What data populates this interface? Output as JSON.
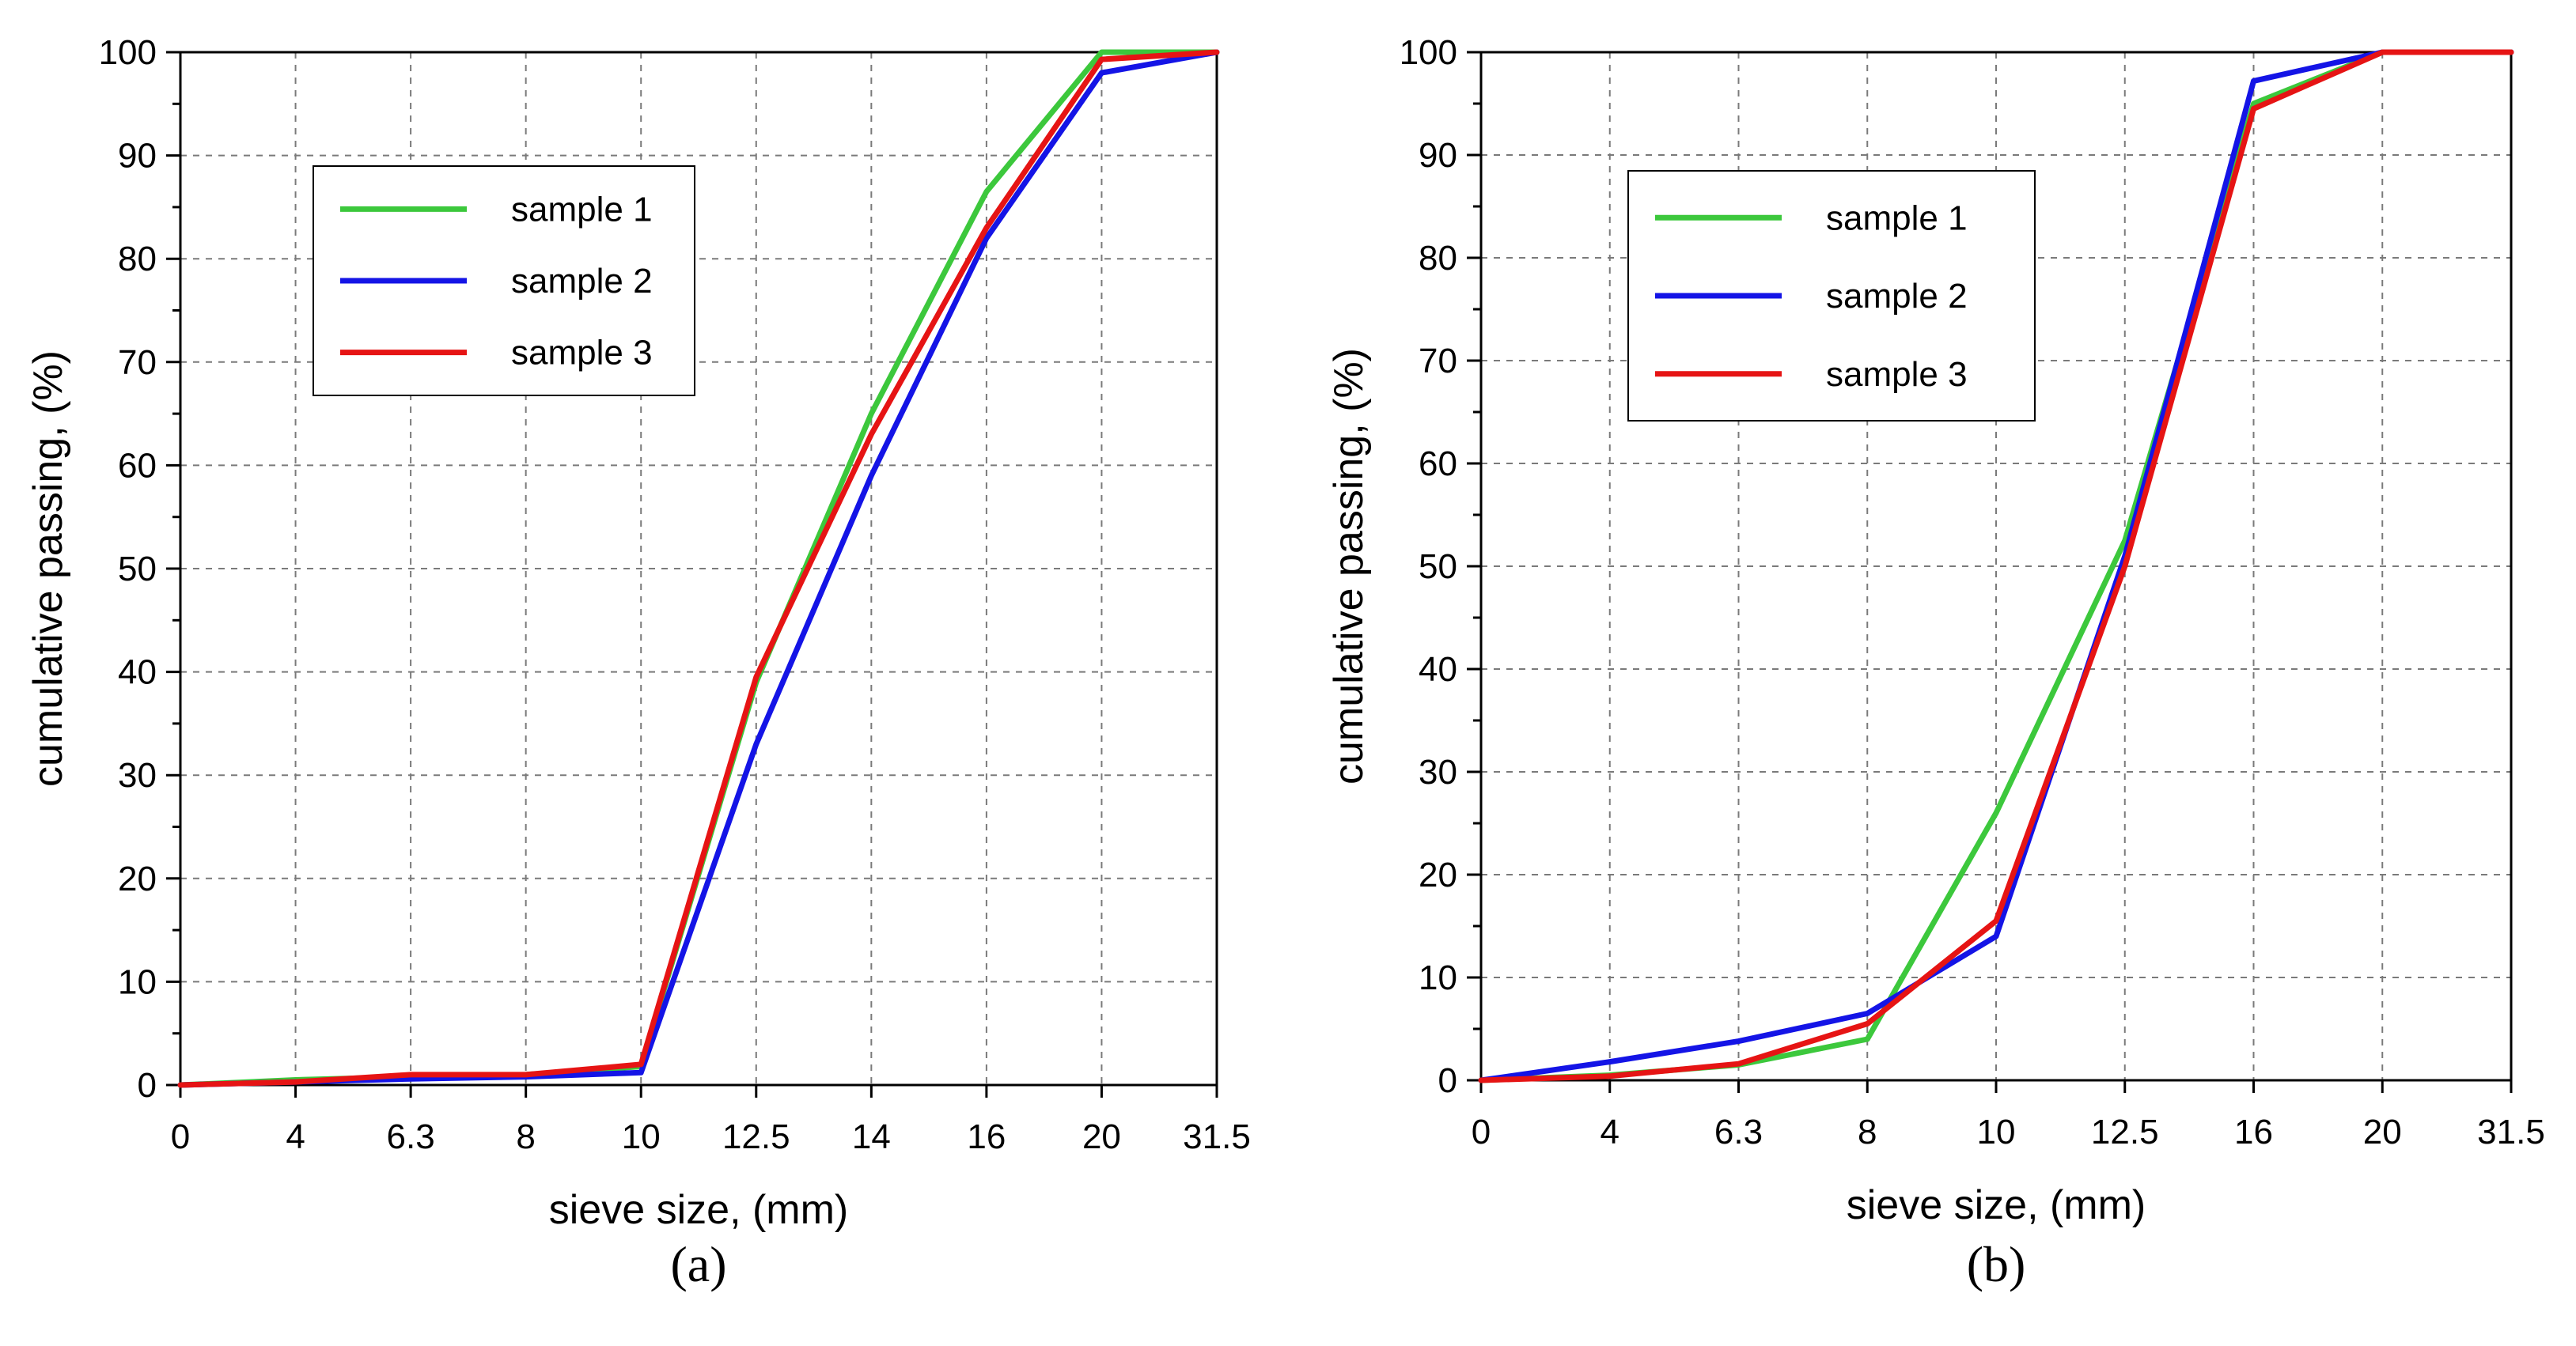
{
  "chart_data": [
    {
      "type": "line",
      "panel_label": "(a)",
      "xlabel": "sieve size, (mm)",
      "ylabel": "cumulative passing, (%)",
      "categories": [
        "0",
        "4",
        "6.3",
        "8",
        "10",
        "12.5",
        "14",
        "16",
        "20",
        "31.5"
      ],
      "ylim": [
        0,
        100
      ],
      "yticks": [
        "0",
        "10",
        "20",
        "30",
        "40",
        "50",
        "60",
        "70",
        "80",
        "90",
        "100"
      ],
      "grid": true,
      "legend_position": "top-left",
      "series": [
        {
          "name": "sample 1",
          "color": "#3cc83c",
          "values": [
            0,
            0.5,
            0.8,
            1.0,
            1.8,
            39,
            65,
            86.5,
            100,
            100
          ]
        },
        {
          "name": "sample 2",
          "color": "#1414e6",
          "values": [
            0,
            0.3,
            0.6,
            0.8,
            1.2,
            33,
            59,
            82,
            98,
            100
          ]
        },
        {
          "name": "sample 3",
          "color": "#e61414",
          "values": [
            0,
            0.3,
            1.0,
            1.0,
            2.0,
            39.5,
            63,
            83,
            99.3,
            100
          ]
        }
      ]
    },
    {
      "type": "line",
      "panel_label": "(b)",
      "xlabel": "sieve size, (mm)",
      "ylabel": "cumulative passing, (%)",
      "categories": [
        "0",
        "4",
        "6.3",
        "8",
        "10",
        "12.5",
        "16",
        "20",
        "31.5"
      ],
      "ylim": [
        0,
        100
      ],
      "yticks": [
        "0",
        "10",
        "20",
        "30",
        "40",
        "50",
        "60",
        "70",
        "80",
        "90",
        "100"
      ],
      "grid": true,
      "legend_position": "top-left",
      "series": [
        {
          "name": "sample 1",
          "color": "#3cc83c",
          "values": [
            0,
            0.5,
            1.5,
            4.0,
            26,
            52.5,
            95,
            100,
            100
          ]
        },
        {
          "name": "sample 2",
          "color": "#1414e6",
          "values": [
            0,
            1.8,
            3.8,
            6.5,
            14,
            51,
            97.2,
            100,
            100
          ]
        },
        {
          "name": "sample 3",
          "color": "#e61414",
          "values": [
            0,
            0.4,
            1.6,
            5.5,
            15.5,
            50,
            94.5,
            100,
            100
          ]
        }
      ]
    }
  ]
}
